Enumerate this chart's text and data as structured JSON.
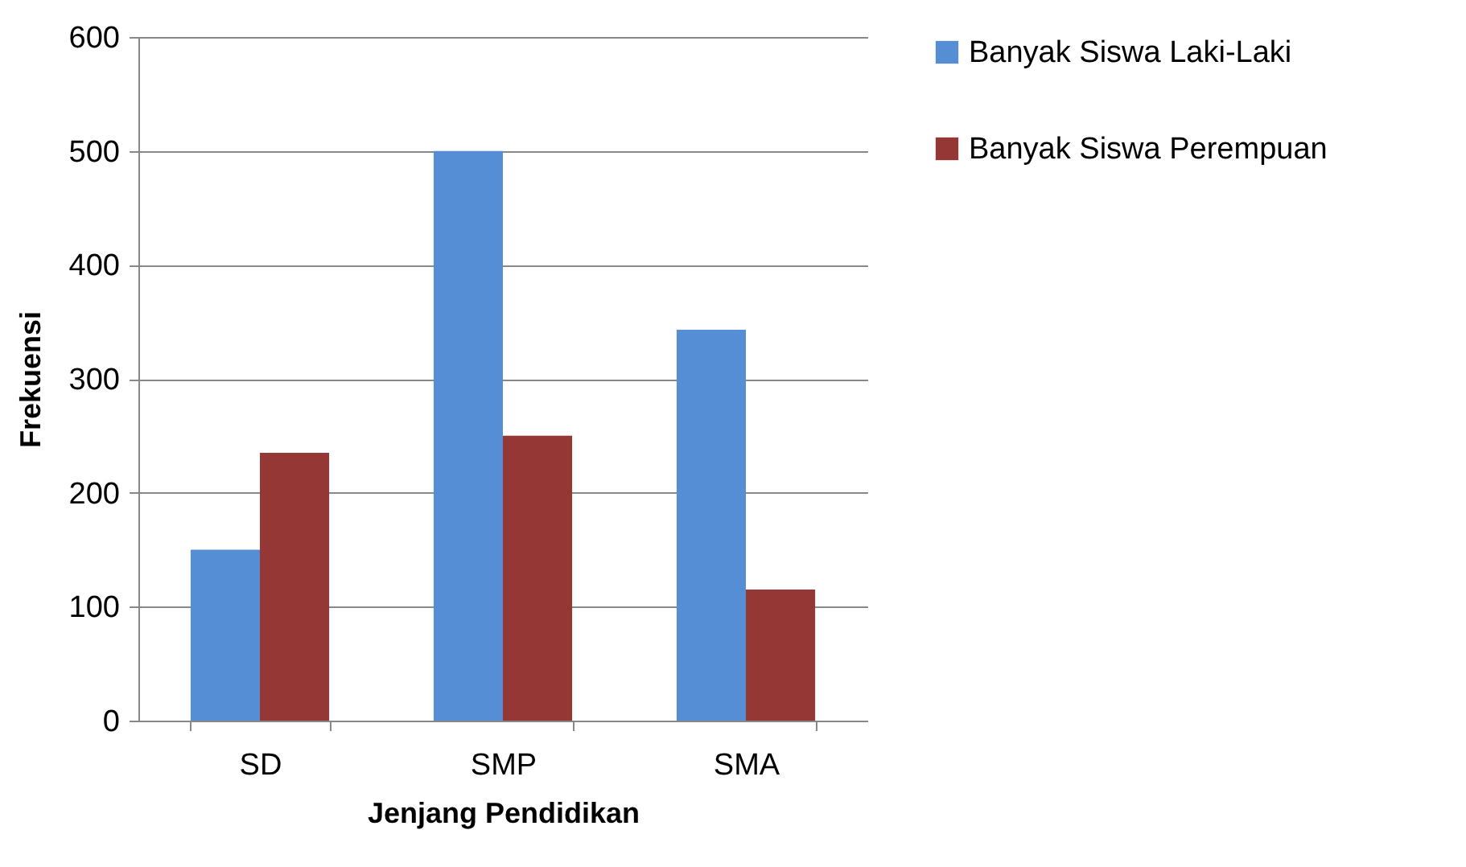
{
  "chart_data": {
    "type": "bar",
    "xlabel": "Jenjang Pendidikan",
    "ylabel": "Frekuensi",
    "categories": [
      "SD",
      "SMP",
      "SMA"
    ],
    "series": [
      {
        "name": "Banyak Siswa Laki-Laki",
        "color": "#558ed5",
        "values": [
          150,
          500,
          343
        ]
      },
      {
        "name": "Banyak Siswa Perempuan",
        "color": "#953735",
        "values": [
          235,
          250,
          115
        ]
      }
    ],
    "ylim": [
      0,
      600
    ],
    "yticks": [
      0,
      100,
      200,
      300,
      400,
      500,
      600
    ],
    "grid": "y",
    "legend": "right"
  }
}
